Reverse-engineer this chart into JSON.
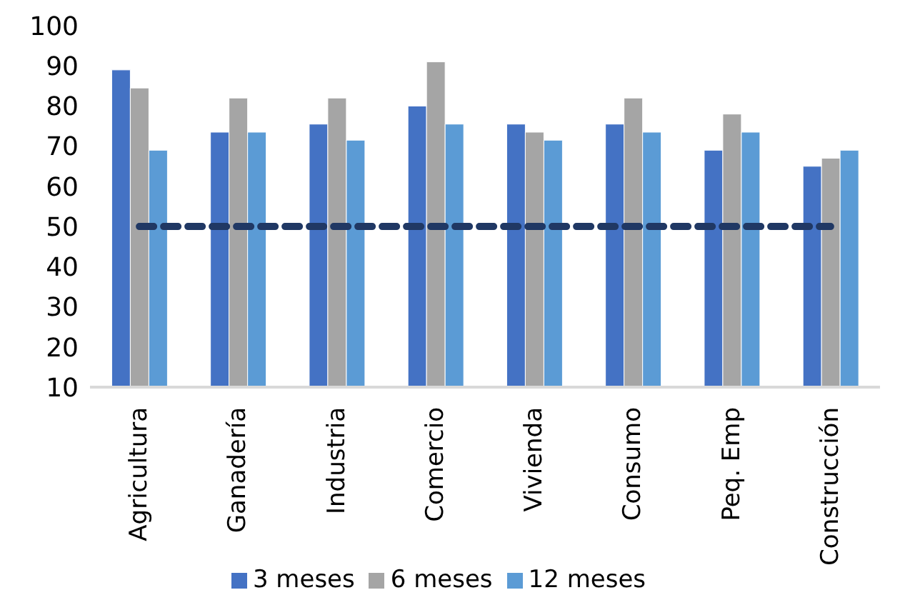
{
  "chart_data": {
    "type": "bar",
    "categories": [
      "Agricultura",
      "Ganadería",
      "Industria",
      "Comercio",
      "Vivienda",
      "Consumo",
      "Peq. Emp",
      "Construcción"
    ],
    "series": [
      {
        "name": "3 meses",
        "color": "#4472c4",
        "values": [
          89,
          73.5,
          75.5,
          80,
          75.5,
          75.5,
          69,
          65
        ]
      },
      {
        "name": "6 meses",
        "color": "#a5a5a5",
        "values": [
          84.5,
          82,
          82,
          91,
          73.5,
          82,
          78,
          67
        ]
      },
      {
        "name": "12 meses",
        "color": "#5b9bd5",
        "values": [
          69,
          73.5,
          71.5,
          75.5,
          71.5,
          73.5,
          73.5,
          69
        ]
      }
    ],
    "ylim": [
      10,
      100
    ],
    "yticks": [
      10,
      20,
      30,
      40,
      50,
      60,
      70,
      80,
      90,
      100
    ],
    "grid": false,
    "legend": "bottom",
    "ref_lines": [
      {
        "axis": "y",
        "value": 50,
        "color": "#203864",
        "line_style": "dashed"
      }
    ]
  }
}
